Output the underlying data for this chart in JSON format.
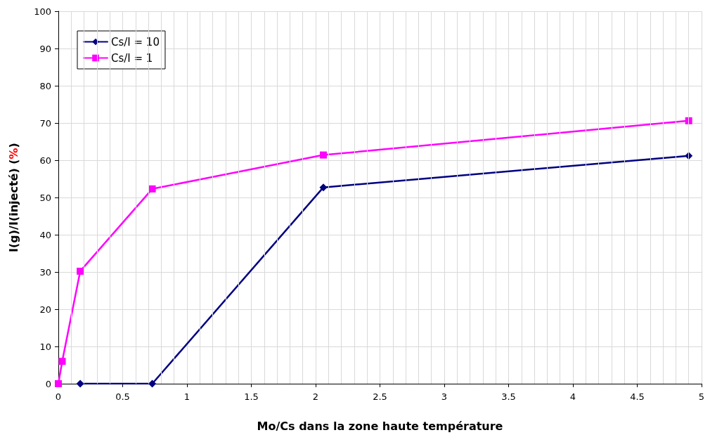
{
  "chart_data": {
    "type": "line",
    "xlabel": "Mo/Cs dans la zone haute température",
    "ylabel": "I(g)/I(injecté) (%)",
    "xlim": [
      0,
      5
    ],
    "xticks": [
      0,
      0.5,
      1,
      1.5,
      2,
      2.5,
      3,
      3.5,
      4,
      4.5,
      5
    ],
    "ylim": [
      0,
      100
    ],
    "yticks": [
      0,
      10,
      20,
      30,
      40,
      50,
      60,
      70,
      80,
      90,
      100
    ],
    "grid": true,
    "legend": "top left",
    "line_style": "solid",
    "series": [
      {
        "name": "Cs/I = 10",
        "color": "#000080",
        "marker": "diamond",
        "x": [
          0.17,
          0.73,
          2.06,
          4.9
        ],
        "values": [
          0,
          0,
          52.7,
          61.2
        ]
      },
      {
        "name": "Cs/I = 1",
        "color": "#ff00ff",
        "marker": "square",
        "x": [
          0,
          0.03,
          0.17,
          0.73,
          2.06,
          4.9
        ],
        "values": [
          0,
          6,
          30.2,
          52.3,
          61.4,
          70.6
        ]
      }
    ]
  }
}
